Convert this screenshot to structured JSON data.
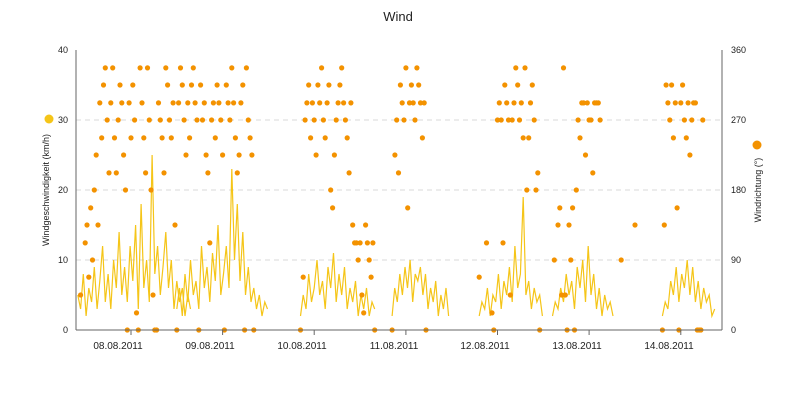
{
  "chart_data": {
    "type": "line",
    "title": "Wind",
    "ylabel_left": "Windgeschwindigkeit (km/h)",
    "ylabel_right": "Windrichtung (°)",
    "ylim_left": [
      0,
      40
    ],
    "ylim_right": [
      0,
      360
    ],
    "yticks_left": [
      "0",
      "10",
      "20",
      "30",
      "40"
    ],
    "yticks_right": [
      "0",
      "90",
      "180",
      "270",
      "360"
    ],
    "grid": true,
    "x_range_days": [
      -0.1,
      6.95
    ],
    "date_labels": [
      "08.08.2011",
      "09.08.2011",
      "10.08.2011",
      "11.08.2011",
      "12.08.2011",
      "13.08.2011",
      "14.08.2011"
    ],
    "colors": {
      "speed": "#f5c518",
      "direction": "#f39200"
    },
    "series": [
      {
        "name": "Windgeschwindigkeit (km/h)",
        "axis": "left",
        "kind": "line",
        "segments": [
          {
            "x0": -0.08,
            "dx": 0.03,
            "values": [
              5,
              3,
              8,
              2,
              6,
              4,
              9,
              3,
              7,
              12,
              4,
              8,
              3,
              10,
              6,
              14,
              5,
              9,
              4,
              12,
              7,
              15,
              3,
              18,
              6,
              10,
              4,
              25,
              8,
              12,
              5,
              9,
              14,
              6,
              10,
              3,
              7,
              4,
              6,
              2,
              5,
              3
            ]
          },
          {
            "x0": 1.0,
            "dx": 0.03,
            "values": [
              3,
              6,
              2,
              8,
              4,
              10,
              5,
              7,
              3,
              12,
              6,
              9,
              4,
              11,
              7,
              15,
              5,
              8,
              12,
              6,
              23,
              10,
              18,
              7,
              14,
              5,
              9,
              4,
              6,
              3,
              5,
              2,
              4,
              3
            ]
          },
          {
            "x0": 2.35,
            "dx": 0.03,
            "values": [
              2,
              5,
              3,
              8,
              4,
              6,
              10,
              5,
              7,
              3,
              9,
              6,
              11,
              4,
              8,
              5,
              9,
              3,
              6,
              4,
              7,
              2,
              5,
              3,
              6,
              2,
              4,
              3
            ]
          },
          {
            "x0": 3.35,
            "dx": 0.028,
            "values": [
              2,
              6,
              4,
              8,
              5,
              9,
              6,
              10,
              4,
              8,
              7,
              9,
              5,
              8,
              3,
              6,
              4,
              7,
              2,
              5,
              3,
              6,
              2
            ]
          },
          {
            "x0": 4.3,
            "dx": 0.03,
            "values": [
              2,
              4,
              3,
              6,
              2,
              5,
              4,
              8,
              3,
              7,
              5,
              9,
              4,
              12,
              6,
              8,
              19,
              5,
              7,
              3,
              6,
              4,
              5,
              2
            ]
          },
          {
            "x0": 5.1,
            "dx": 0.03,
            "values": [
              2,
              4,
              3,
              6,
              4,
              8,
              5,
              7,
              3,
              9,
              6,
              10,
              4,
              12,
              5,
              8,
              3,
              6,
              2,
              5,
              3,
              4,
              2
            ]
          },
          {
            "x0": 6.3,
            "dx": 0.03,
            "values": [
              2,
              4,
              3,
              7,
              5,
              9,
              4,
              8,
              6,
              10,
              5,
              9,
              4,
              7,
              3,
              6,
              4,
              5,
              2,
              3
            ]
          }
        ]
      },
      {
        "name": "Windrichtung (°)",
        "axis": "right",
        "kind": "scatter",
        "points": [
          [
            -0.05,
            45
          ],
          [
            0.0,
            112
          ],
          [
            0.02,
            135
          ],
          [
            0.04,
            68
          ],
          [
            0.06,
            157
          ],
          [
            0.08,
            90
          ],
          [
            0.1,
            180
          ],
          [
            0.12,
            225
          ],
          [
            0.14,
            135
          ],
          [
            0.16,
            292
          ],
          [
            0.18,
            247
          ],
          [
            0.2,
            315
          ],
          [
            0.22,
            337
          ],
          [
            0.24,
            270
          ],
          [
            0.26,
            202
          ],
          [
            0.28,
            292
          ],
          [
            0.3,
            337
          ],
          [
            0.32,
            247
          ],
          [
            0.34,
            202
          ],
          [
            0.36,
            270
          ],
          [
            0.38,
            315
          ],
          [
            0.4,
            292
          ],
          [
            0.42,
            225
          ],
          [
            0.44,
            180
          ],
          [
            0.46,
            0
          ],
          [
            0.48,
            292
          ],
          [
            0.5,
            247
          ],
          [
            0.52,
            315
          ],
          [
            0.54,
            270
          ],
          [
            0.56,
            22
          ],
          [
            0.58,
            0
          ],
          [
            0.6,
            337
          ],
          [
            0.62,
            292
          ],
          [
            0.64,
            247
          ],
          [
            0.66,
            202
          ],
          [
            0.68,
            337
          ],
          [
            0.7,
            270
          ],
          [
            0.72,
            180
          ],
          [
            0.74,
            45
          ],
          [
            0.76,
            0
          ],
          [
            0.78,
            0
          ],
          [
            0.8,
            292
          ],
          [
            0.82,
            270
          ],
          [
            0.84,
            247
          ],
          [
            0.86,
            202
          ],
          [
            0.88,
            337
          ],
          [
            0.9,
            315
          ],
          [
            0.92,
            270
          ],
          [
            0.94,
            247
          ],
          [
            0.96,
            292
          ],
          [
            0.98,
            135
          ],
          [
            1.0,
            0
          ],
          [
            1.02,
            292
          ],
          [
            1.04,
            337
          ],
          [
            1.06,
            315
          ],
          [
            1.08,
            270
          ],
          [
            1.1,
            225
          ],
          [
            1.12,
            292
          ],
          [
            1.14,
            247
          ],
          [
            1.16,
            315
          ],
          [
            1.18,
            337
          ],
          [
            1.2,
            292
          ],
          [
            1.22,
            270
          ],
          [
            1.24,
            0
          ],
          [
            1.26,
            315
          ],
          [
            1.28,
            270
          ],
          [
            1.3,
            292
          ],
          [
            1.32,
            225
          ],
          [
            1.34,
            202
          ],
          [
            1.36,
            112
          ],
          [
            1.38,
            270
          ],
          [
            1.4,
            292
          ],
          [
            1.42,
            247
          ],
          [
            1.44,
            315
          ],
          [
            1.46,
            292
          ],
          [
            1.48,
            270
          ],
          [
            1.5,
            225
          ],
          [
            1.52,
            0
          ],
          [
            1.54,
            315
          ],
          [
            1.56,
            292
          ],
          [
            1.58,
            270
          ],
          [
            1.6,
            337
          ],
          [
            1.62,
            292
          ],
          [
            1.64,
            247
          ],
          [
            1.66,
            202
          ],
          [
            1.68,
            225
          ],
          [
            1.7,
            292
          ],
          [
            1.72,
            315
          ],
          [
            1.74,
            0
          ],
          [
            1.76,
            337
          ],
          [
            1.78,
            270
          ],
          [
            1.8,
            247
          ],
          [
            1.82,
            225
          ],
          [
            1.84,
            0
          ],
          [
            2.35,
            0
          ],
          [
            2.38,
            68
          ],
          [
            2.4,
            270
          ],
          [
            2.42,
            292
          ],
          [
            2.44,
            315
          ],
          [
            2.46,
            247
          ],
          [
            2.48,
            292
          ],
          [
            2.5,
            270
          ],
          [
            2.52,
            225
          ],
          [
            2.54,
            315
          ],
          [
            2.56,
            292
          ],
          [
            2.58,
            337
          ],
          [
            2.6,
            270
          ],
          [
            2.62,
            247
          ],
          [
            2.64,
            292
          ],
          [
            2.66,
            315
          ],
          [
            2.68,
            180
          ],
          [
            2.7,
            157
          ],
          [
            2.72,
            225
          ],
          [
            2.74,
            270
          ],
          [
            2.76,
            292
          ],
          [
            2.78,
            315
          ],
          [
            2.8,
            337
          ],
          [
            2.82,
            292
          ],
          [
            2.84,
            270
          ],
          [
            2.86,
            247
          ],
          [
            2.88,
            202
          ],
          [
            2.9,
            292
          ],
          [
            2.92,
            135
          ],
          [
            2.94,
            112
          ],
          [
            2.96,
            112
          ],
          [
            2.98,
            90
          ],
          [
            3.0,
            112
          ],
          [
            3.02,
            45
          ],
          [
            3.04,
            22
          ],
          [
            3.06,
            135
          ],
          [
            3.08,
            112
          ],
          [
            3.1,
            90
          ],
          [
            3.12,
            68
          ],
          [
            3.14,
            112
          ],
          [
            3.16,
            0
          ],
          [
            3.35,
            0
          ],
          [
            3.38,
            225
          ],
          [
            3.4,
            270
          ],
          [
            3.42,
            202
          ],
          [
            3.44,
            315
          ],
          [
            3.46,
            292
          ],
          [
            3.48,
            270
          ],
          [
            3.5,
            337
          ],
          [
            3.52,
            157
          ],
          [
            3.54,
            292
          ],
          [
            3.56,
            315
          ],
          [
            3.58,
            292
          ],
          [
            3.6,
            270
          ],
          [
            3.62,
            337
          ],
          [
            3.64,
            315
          ],
          [
            3.66,
            292
          ],
          [
            3.68,
            247
          ],
          [
            3.7,
            292
          ],
          [
            3.72,
            0
          ],
          [
            4.3,
            68
          ],
          [
            4.38,
            112
          ],
          [
            4.44,
            22
          ],
          [
            4.46,
            0
          ],
          [
            4.5,
            270
          ],
          [
            4.52,
            292
          ],
          [
            4.54,
            270
          ],
          [
            4.56,
            112
          ],
          [
            4.58,
            315
          ],
          [
            4.6,
            292
          ],
          [
            4.62,
            270
          ],
          [
            4.64,
            45
          ],
          [
            4.66,
            270
          ],
          [
            4.68,
            292
          ],
          [
            4.7,
            337
          ],
          [
            4.72,
            315
          ],
          [
            4.74,
            270
          ],
          [
            4.76,
            292
          ],
          [
            4.78,
            247
          ],
          [
            4.8,
            337
          ],
          [
            4.82,
            180
          ],
          [
            4.84,
            247
          ],
          [
            4.86,
            292
          ],
          [
            4.88,
            315
          ],
          [
            4.9,
            270
          ],
          [
            4.92,
            180
          ],
          [
            4.94,
            202
          ],
          [
            4.96,
            0
          ],
          [
            5.12,
            90
          ],
          [
            5.16,
            135
          ],
          [
            5.18,
            157
          ],
          [
            5.2,
            45
          ],
          [
            5.22,
            337
          ],
          [
            5.24,
            45
          ],
          [
            5.26,
            0
          ],
          [
            5.28,
            135
          ],
          [
            5.3,
            90
          ],
          [
            5.32,
            157
          ],
          [
            5.34,
            0
          ],
          [
            5.36,
            180
          ],
          [
            5.38,
            270
          ],
          [
            5.4,
            247
          ],
          [
            5.42,
            292
          ],
          [
            5.44,
            292
          ],
          [
            5.46,
            225
          ],
          [
            5.48,
            292
          ],
          [
            5.5,
            270
          ],
          [
            5.52,
            270
          ],
          [
            5.54,
            202
          ],
          [
            5.56,
            292
          ],
          [
            5.58,
            292
          ],
          [
            5.6,
            292
          ],
          [
            5.62,
            270
          ],
          [
            5.85,
            90
          ],
          [
            6.0,
            135
          ],
          [
            6.3,
            0
          ],
          [
            6.32,
            135
          ],
          [
            6.34,
            315
          ],
          [
            6.36,
            292
          ],
          [
            6.38,
            270
          ],
          [
            6.4,
            315
          ],
          [
            6.42,
            247
          ],
          [
            6.44,
            292
          ],
          [
            6.46,
            157
          ],
          [
            6.48,
            0
          ],
          [
            6.5,
            292
          ],
          [
            6.52,
            315
          ],
          [
            6.54,
            270
          ],
          [
            6.56,
            247
          ],
          [
            6.58,
            292
          ],
          [
            6.6,
            225
          ],
          [
            6.62,
            270
          ],
          [
            6.64,
            292
          ],
          [
            6.66,
            292
          ],
          [
            6.68,
            0
          ],
          [
            6.7,
            0
          ],
          [
            6.72,
            0
          ],
          [
            6.74,
            270
          ]
        ]
      }
    ]
  }
}
